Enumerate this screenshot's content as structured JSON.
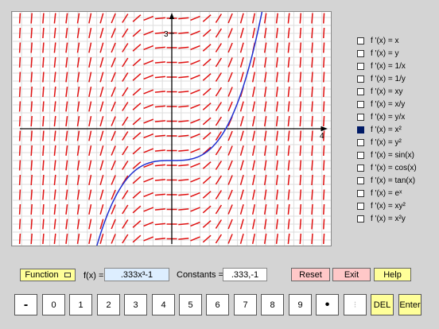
{
  "plot": {
    "x_tick_label": "4",
    "y_tick_label": "3",
    "colors": {
      "slope": "#e01010",
      "curve": "#2030d0",
      "grid": "#dddddd",
      "axis": "#000000"
    }
  },
  "options": [
    {
      "label": "f '(x) = x",
      "checked": false
    },
    {
      "label": "f '(x) = y",
      "checked": false
    },
    {
      "label": "f '(x) = 1/x",
      "checked": false
    },
    {
      "label": "f '(x) = 1/y",
      "checked": false
    },
    {
      "label": "f '(x) = xy",
      "checked": false
    },
    {
      "label": "f '(x) = x/y",
      "checked": false
    },
    {
      "label": "f '(x) = y/x",
      "checked": false
    },
    {
      "label": "f '(x) = x²",
      "checked": true
    },
    {
      "label": "f '(x) = y²",
      "checked": false
    },
    {
      "label": "f '(x) = sin(x)",
      "checked": false
    },
    {
      "label": "f '(x) = cos(x)",
      "checked": false
    },
    {
      "label": "f '(x) = tan(x)",
      "checked": false
    },
    {
      "label": "f '(x) = eˣ",
      "checked": false
    },
    {
      "label": "f '(x) = xy²",
      "checked": false
    },
    {
      "label": "f '(x) = x²y",
      "checked": false
    }
  ],
  "controls": {
    "function_button": "Function",
    "fx_label": "f(x) =",
    "fx_value": ".333x³-1",
    "constants_label": "Constants =",
    "constants_value": ".333,-1",
    "reset": "Reset",
    "exit": "Exit",
    "help": "Help"
  },
  "keypad": [
    "-",
    "0",
    "1",
    "2",
    "3",
    "4",
    "5",
    "6",
    "7",
    "8",
    "9",
    "•",
    "⁝",
    "DEL",
    "Enter"
  ]
}
